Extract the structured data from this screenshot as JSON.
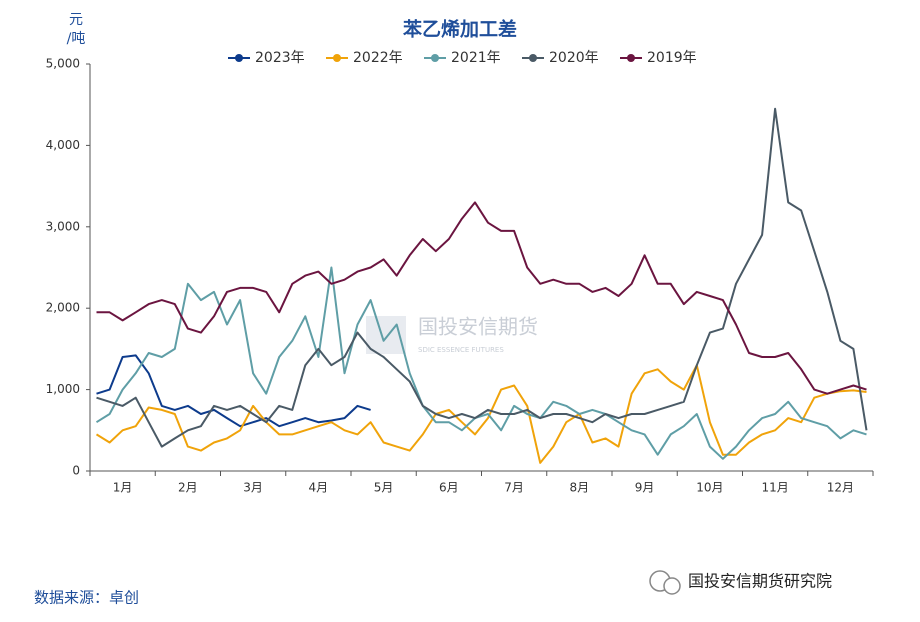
{
  "chart_data": {
    "type": "line",
    "title": "苯乙烯加工差",
    "y_label": "元/吨",
    "source": "数据来源：卓创",
    "watermark": "国投安信期货研究院",
    "center_watermark": "国投安信期货",
    "center_watermark_sub": "SDIC ESSENCE FUTURES",
    "categories": [
      null,
      null,
      "1月",
      null,
      null,
      null,
      null,
      "2月",
      null,
      null,
      null,
      null,
      "3月",
      null,
      null,
      null,
      null,
      "4月",
      null,
      null,
      null,
      null,
      "5月",
      null,
      null,
      null,
      null,
      "6月",
      null,
      null,
      null,
      null,
      "7月",
      null,
      null,
      null,
      null,
      "8月",
      null,
      null,
      null,
      null,
      "9月",
      null,
      null,
      null,
      null,
      "10月",
      null,
      null,
      null,
      null,
      "11月",
      null,
      null,
      null,
      null,
      "12月",
      null,
      null
    ],
    "ylim": [
      0,
      5000
    ],
    "yticks": [
      0,
      {
        "value": 1000,
        "label": "1,000"
      },
      {
        "value": 2000,
        "label": "2,000"
      },
      {
        "value": 3000,
        "label": "3,000"
      },
      {
        "value": 4000,
        "label": "4,000"
      },
      {
        "value": 5000,
        "label": "5,000"
      }
    ],
    "series": [
      {
        "name": "2023年",
        "color": "#0d3b8c",
        "values": [
          950,
          1000,
          1400,
          1420,
          1200,
          800,
          750,
          800,
          700,
          750,
          650,
          550,
          600,
          650,
          550,
          600,
          650,
          600,
          620,
          650,
          800,
          750,
          null,
          null,
          null,
          null,
          null,
          null,
          null,
          null,
          null,
          null,
          null,
          null,
          null,
          null,
          null,
          null,
          null,
          null,
          null,
          null,
          null,
          null,
          null,
          null,
          null,
          null,
          null,
          null,
          null,
          null,
          null,
          null,
          null,
          null,
          null,
          null,
          null,
          null
        ]
      },
      {
        "name": "2022年",
        "color": "#f0a30a",
        "values": [
          450,
          350,
          500,
          550,
          780,
          750,
          700,
          300,
          250,
          350,
          400,
          500,
          800,
          600,
          450,
          450,
          500,
          550,
          600,
          500,
          450,
          600,
          350,
          300,
          250,
          450,
          700,
          750,
          600,
          450,
          650,
          1000,
          1050,
          800,
          100,
          300,
          600,
          700,
          350,
          400,
          300,
          950,
          1200,
          1250,
          1100,
          1000,
          1300,
          600,
          200,
          200,
          350,
          450,
          500,
          650,
          600,
          900,
          950,
          980,
          990,
          970
        ]
      },
      {
        "name": "2021年",
        "color": "#5f9ea6",
        "values": [
          600,
          700,
          1000,
          1200,
          1450,
          1400,
          1500,
          2300,
          2100,
          2200,
          1800,
          2100,
          1200,
          950,
          1400,
          1600,
          1900,
          1400,
          2500,
          1200,
          1800,
          2100,
          1600,
          1800,
          1200,
          800,
          600,
          600,
          500,
          650,
          700,
          500,
          800,
          700,
          650,
          850,
          800,
          700,
          750,
          700,
          600,
          500,
          450,
          200,
          450,
          550,
          700,
          300,
          150,
          300,
          500,
          650,
          700,
          850,
          650,
          600,
          550,
          400,
          500,
          450
        ]
      },
      {
        "name": "2020年",
        "color": "#4a5a66",
        "values": [
          900,
          850,
          800,
          900,
          600,
          300,
          400,
          500,
          550,
          800,
          750,
          800,
          700,
          600,
          800,
          750,
          1300,
          1500,
          1300,
          1400,
          1700,
          1500,
          1400,
          1250,
          1100,
          800,
          700,
          650,
          700,
          650,
          750,
          700,
          700,
          750,
          650,
          700,
          700,
          650,
          600,
          700,
          650,
          700,
          700,
          750,
          800,
          850,
          1300,
          1700,
          1750,
          2300,
          2600,
          2900,
          4450,
          3300,
          3200,
          2700,
          2200,
          1600,
          1500,
          500
        ]
      },
      {
        "name": "2019年",
        "color": "#6b1540",
        "values": [
          1950,
          1950,
          1850,
          1950,
          2050,
          2100,
          2050,
          1750,
          1700,
          1900,
          2200,
          2250,
          2250,
          2200,
          1950,
          2300,
          2400,
          2450,
          2300,
          2350,
          2450,
          2500,
          2600,
          2400,
          2650,
          2850,
          2700,
          2850,
          3100,
          3300,
          3050,
          2950,
          2950,
          2500,
          2300,
          2350,
          2300,
          2300,
          2200,
          2250,
          2150,
          2300,
          2650,
          2300,
          2300,
          2050,
          2200,
          2150,
          2100,
          1800,
          1450,
          1400,
          1400,
          1450,
          1250,
          1000,
          950,
          1000,
          1050,
          1000
        ]
      }
    ]
  }
}
